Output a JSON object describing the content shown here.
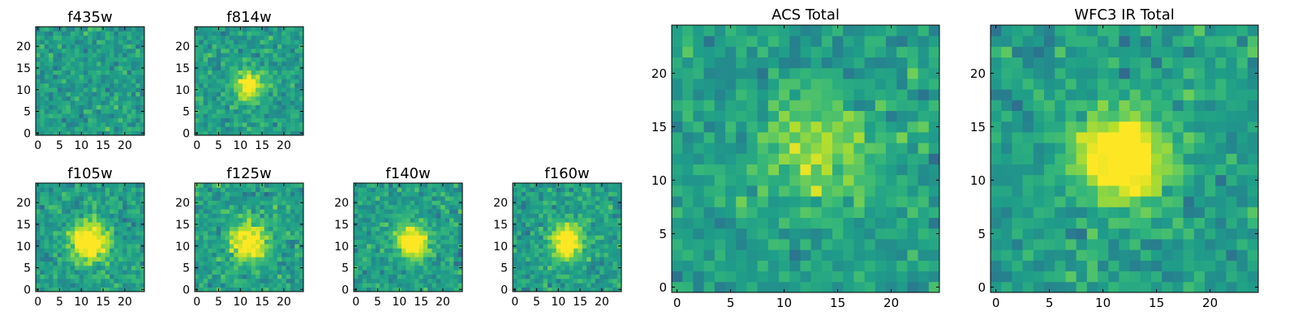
{
  "chart_data": [
    {
      "type": "heatmap",
      "title": "f435w",
      "size": 25,
      "xticks": [
        0,
        5,
        10,
        15,
        20
      ],
      "yticks": [
        0,
        5,
        10,
        15,
        20
      ],
      "xlim": [
        -0.5,
        24.5
      ],
      "ylim": [
        -0.5,
        24.5
      ],
      "colormap": "viridis",
      "pattern": "noise",
      "source_peak": null
    },
    {
      "type": "heatmap",
      "title": "f814w",
      "size": 25,
      "xticks": [
        0,
        5,
        10,
        15,
        20
      ],
      "yticks": [
        0,
        5,
        10,
        15,
        20
      ],
      "xlim": [
        -0.5,
        24.5
      ],
      "ylim": [
        -0.5,
        24.5
      ],
      "colormap": "viridis",
      "pattern": "central source",
      "source_peak": [
        12,
        11
      ]
    },
    {
      "type": "heatmap",
      "title": "f105w",
      "size": 25,
      "xticks": [
        0,
        5,
        10,
        15,
        20
      ],
      "yticks": [
        0,
        5,
        10,
        15,
        20
      ],
      "xlim": [
        -0.5,
        24.5
      ],
      "ylim": [
        -0.5,
        24.5
      ],
      "colormap": "viridis",
      "pattern": "central source",
      "source_peak": [
        12,
        11
      ]
    },
    {
      "type": "heatmap",
      "title": "f125w",
      "size": 25,
      "xticks": [
        0,
        5,
        10,
        15,
        20
      ],
      "yticks": [
        0,
        5,
        10,
        15,
        20
      ],
      "xlim": [
        -0.5,
        24.5
      ],
      "ylim": [
        -0.5,
        24.5
      ],
      "colormap": "viridis",
      "pattern": "central source",
      "source_peak": [
        12,
        11
      ]
    },
    {
      "type": "heatmap",
      "title": "f140w",
      "size": 25,
      "xticks": [
        0,
        5,
        10,
        15,
        20
      ],
      "yticks": [
        0,
        5,
        10,
        15,
        20
      ],
      "xlim": [
        -0.5,
        24.5
      ],
      "ylim": [
        -0.5,
        24.5
      ],
      "colormap": "viridis",
      "pattern": "central source",
      "source_peak": [
        13,
        11
      ]
    },
    {
      "type": "heatmap",
      "title": "f160w",
      "size": 25,
      "xticks": [
        0,
        5,
        10,
        15,
        20
      ],
      "yticks": [
        0,
        5,
        10,
        15,
        20
      ],
      "xlim": [
        -0.5,
        24.5
      ],
      "ylim": [
        -0.5,
        24.5
      ],
      "colormap": "viridis",
      "pattern": "central source",
      "source_peak": [
        12,
        11
      ]
    },
    {
      "type": "heatmap",
      "title": "ACS Total",
      "size": 25,
      "xticks": [
        0,
        5,
        10,
        15,
        20
      ],
      "yticks": [
        0,
        5,
        10,
        15,
        20
      ],
      "xlim": [
        -0.5,
        24.5
      ],
      "ylim": [
        -0.5,
        24.5
      ],
      "colormap": "viridis",
      "pattern": "faint source",
      "source_peak": [
        13,
        13
      ]
    },
    {
      "type": "heatmap",
      "title": "WFC3 IR Total",
      "size": 25,
      "xticks": [
        0,
        5,
        10,
        15,
        20
      ],
      "yticks": [
        0,
        5,
        10,
        15,
        20
      ],
      "xlim": [
        -0.5,
        24.5
      ],
      "ylim": [
        -0.5,
        24.5
      ],
      "colormap": "viridis",
      "pattern": "central source",
      "source_peak": [
        12,
        12
      ]
    }
  ]
}
